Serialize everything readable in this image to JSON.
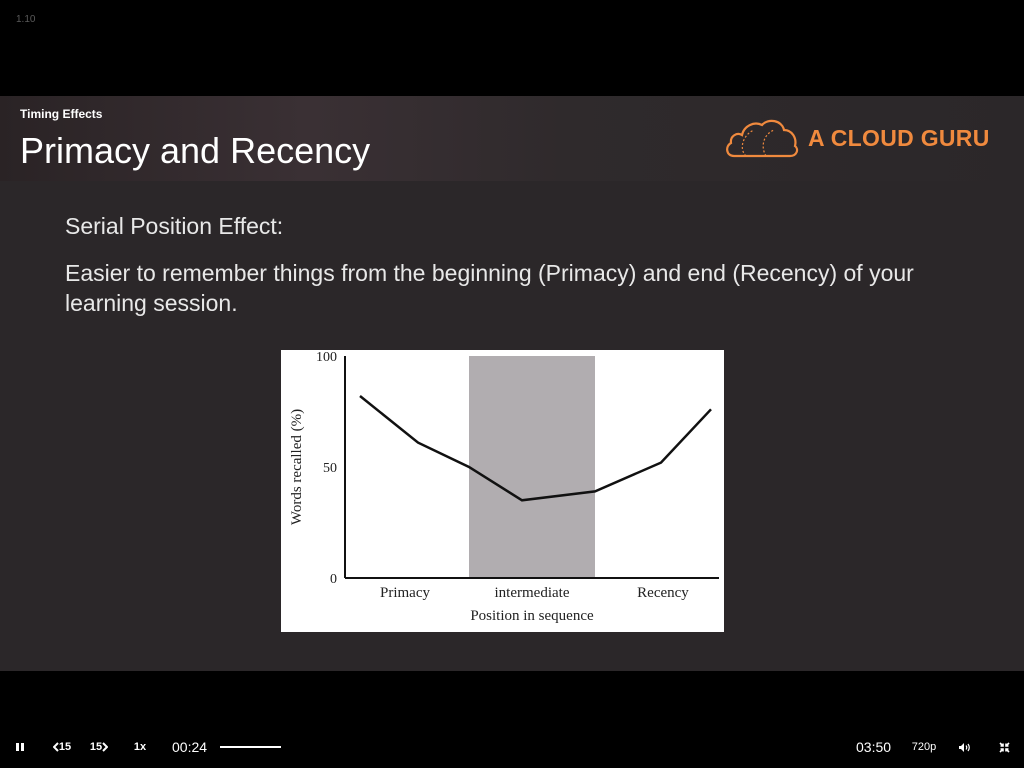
{
  "player": {
    "version": "1.10",
    "current_time": "00:24",
    "total_time": "03:50",
    "quality": "720p",
    "speed": "1x",
    "skip_back": "15",
    "skip_forward": "15"
  },
  "slide": {
    "kicker": "Timing Effects",
    "title": "Primacy and Recency",
    "brand": "A CLOUD GURU",
    "subtitle": "Serial Position Effect:",
    "description": "Easier to remember things from the beginning (Primacy) and end (Recency) of your learning session."
  },
  "colors": {
    "brand_orange": "#f08a3e",
    "slide_bg": "#2b2729",
    "shaded_band": "#b1adb0"
  },
  "chart_data": {
    "type": "line",
    "ylabel": "Words recalled (%)",
    "xlabel": "Position in sequence",
    "ylim": [
      0,
      100
    ],
    "yticks": [
      0,
      50,
      100
    ],
    "categories": [
      "Primacy",
      "intermediate",
      "Recency"
    ],
    "shaded_region": "intermediate",
    "x": [
      0,
      1,
      2,
      3,
      4,
      5,
      6
    ],
    "y": [
      82,
      61,
      50,
      35,
      39,
      52,
      76
    ]
  }
}
